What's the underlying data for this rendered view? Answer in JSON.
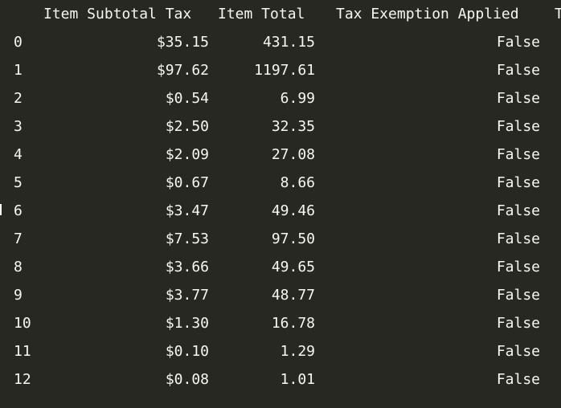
{
  "table": {
    "columns": {
      "subtotal_tax": "Item Subtotal Tax",
      "item_total": "Item Total",
      "exemption": "Tax Exemption Applied",
      "cut": "T"
    },
    "rows": [
      {
        "index": "0",
        "subtotal_tax": "$35.15",
        "item_total": "431.15",
        "exemption": "False"
      },
      {
        "index": "1",
        "subtotal_tax": "$97.62",
        "item_total": "1197.61",
        "exemption": "False"
      },
      {
        "index": "2",
        "subtotal_tax": "$0.54",
        "item_total": "6.99",
        "exemption": "False"
      },
      {
        "index": "3",
        "subtotal_tax": "$2.50",
        "item_total": "32.35",
        "exemption": "False"
      },
      {
        "index": "4",
        "subtotal_tax": "$2.09",
        "item_total": "27.08",
        "exemption": "False"
      },
      {
        "index": "5",
        "subtotal_tax": "$0.67",
        "item_total": "8.66",
        "exemption": "False"
      },
      {
        "index": "6",
        "subtotal_tax": "$3.47",
        "item_total": "49.46",
        "exemption": "False"
      },
      {
        "index": "7",
        "subtotal_tax": "$7.53",
        "item_total": "97.50",
        "exemption": "False"
      },
      {
        "index": "8",
        "subtotal_tax": "$3.66",
        "item_total": "49.65",
        "exemption": "False"
      },
      {
        "index": "9",
        "subtotal_tax": "$3.77",
        "item_total": "48.77",
        "exemption": "False"
      },
      {
        "index": "10",
        "subtotal_tax": "$1.30",
        "item_total": "16.78",
        "exemption": "False"
      },
      {
        "index": "11",
        "subtotal_tax": "$0.10",
        "item_total": "1.29",
        "exemption": "False"
      },
      {
        "index": "12",
        "subtotal_tax": "$0.08",
        "item_total": "1.01",
        "exemption": "False"
      }
    ]
  }
}
